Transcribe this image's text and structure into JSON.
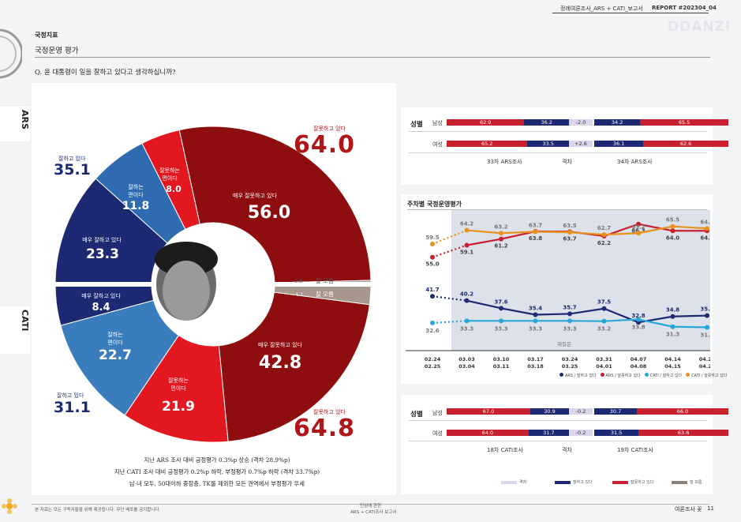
{
  "header": {
    "report_title": "정례여론조사_ARS + CATI_보고서",
    "report_no": "REPORT #202304_04",
    "watermark": "DDANZI"
  },
  "section": {
    "category": "국정지표",
    "title": "국정운영 평가",
    "question": "Q.  윤 대통령이 일을 잘하고 있다고 생각하십니까?"
  },
  "side_labels": {
    "ars": "ARS",
    "cati": "CATI"
  },
  "donut": {
    "ars": {
      "positive_label": "잘하고 있다",
      "positive": "35.1",
      "negative_label": "잘못하고 있다",
      "negative": "64.0",
      "very_neg_label": "매우 잘못하고 있다",
      "very_neg": "56.0",
      "some_neg_label": "잘못하는\n편이다",
      "some_neg": "8.0",
      "some_pos_label": "잘하는\n편이다",
      "some_pos": "11.8",
      "very_pos_label": "매우 잘하고 있다",
      "very_pos": "23.3",
      "dk_label": "잘 모름",
      "dk": "0.8"
    },
    "cati": {
      "positive_label": "잘하고 있다",
      "positive": "31.1",
      "negative_label": "잘못하고 있다",
      "negative": "64.8",
      "very_neg_label": "매우 잘못하고 있다",
      "very_neg": "42.8",
      "some_neg_label": "잘못하는\n편이다",
      "some_neg": "21.9",
      "some_pos_label": "잘하는\n편이다",
      "some_pos": "22.7",
      "very_pos_label": "매우 잘하고 있다",
      "very_pos": "8.4",
      "dk_label": "잘 모름",
      "dk": "4.1"
    }
  },
  "notes": [
    "지난 ARS 조사 대비 긍정평가 0.3%p 상승 (격차 28.9%p)",
    "지난 CATI 조사 대비 긍정평가 0.2%p 하락, 부정평가 0.7%p 하락 (격차 33.7%p)",
    "남·녀 모두, 50대이하 중장층, TK를 제외한 모든 권역에서 부정평가 우세"
  ],
  "gender_top": {
    "group_label": "성별",
    "rows": [
      {
        "label": "남성",
        "a_neg": "62.9",
        "a_pos": "36.2",
        "gap": "-2.0",
        "b_pos": "34.2",
        "b_neg": "65.5"
      },
      {
        "label": "여성",
        "a_neg": "65.2",
        "a_pos": "33.5",
        "gap": "+2.6",
        "b_pos": "36.1",
        "b_neg": "62.6"
      }
    ],
    "col_a": "33차 ARS조사",
    "col_gap": "격차",
    "col_b": "34차 ARS조사"
  },
  "weekly": {
    "title": "주차별 국정운영평가",
    "annotation": "재질문",
    "legend": [
      "ARS / 잘하고 있다",
      "ARS / 잘못하고 있다",
      "CATI / 잘하고 있다",
      "CATI / 잘못하고 있다"
    ]
  },
  "chart_data": {
    "type": "line",
    "title": "주차별 국정운영평가",
    "x": [
      "02.24\n02.25",
      "03.03\n03.04",
      "03.10\n03.11",
      "03.17\n03.18",
      "03.24\n03.25",
      "03.31\n04.01",
      "04.07\n04.08",
      "04.14\n04.15",
      "04.21\n04.22"
    ],
    "series": [
      {
        "name": "ARS / 잘못하고 있다",
        "values": [
          55.0,
          59.1,
          61.2,
          63.8,
          63.7,
          62.2,
          66.3,
          64.0,
          64.0
        ]
      },
      {
        "name": "CATI / 잘못하고 있다",
        "values": [
          59.5,
          64.2,
          63.2,
          63.7,
          63.5,
          62.7,
          63.2,
          65.5,
          64.8
        ]
      },
      {
        "name": "ARS / 잘하고 있다",
        "values": [
          41.7,
          40.2,
          37.6,
          35.4,
          35.7,
          37.5,
          32.8,
          34.8,
          35.1
        ]
      },
      {
        "name": "CATI / 잘하고 있다",
        "values": [
          32.6,
          33.3,
          33.3,
          33.3,
          33.3,
          33.2,
          33.8,
          31.3,
          31.1
        ]
      }
    ],
    "colors": [
      "#c8202f",
      "#e8911c",
      "#1d2a73",
      "#27a7d8"
    ]
  },
  "gender_bottom": {
    "group_label": "성별",
    "rows": [
      {
        "label": "남성",
        "a_neg": "67.0",
        "a_pos": "30.9",
        "gap": "-0.2",
        "b_pos": "30.7",
        "b_neg": "66.0"
      },
      {
        "label": "여성",
        "a_neg": "64.0",
        "a_pos": "31.7",
        "gap": "-0.2",
        "b_pos": "31.5",
        "b_neg": "63.6"
      }
    ],
    "col_a": "18차 CATI조사",
    "col_gap": "격차",
    "col_b": "19차 CATI조사"
  },
  "bottom_legend": [
    "격차",
    "잘하고 있다",
    "잘못하고 있다",
    "잘 모름"
  ],
  "footer": {
    "left": "본 자료는 모든 구독자들을 위해 제공됩니다. 무단 배포를 금지합니다.",
    "center_1": "민심에 관한",
    "center_2": "ARS + CATI조사 보고서",
    "right": "여론조사 꽃",
    "page": "11"
  },
  "colors": {
    "dark_red": "#8e0e10",
    "red": "#e3171f",
    "navy": "#1d2a73",
    "blue": "#2f6bb1",
    "mid_blue": "#3a7dbd",
    "grey": "#a8978c",
    "chart_bg": "#dde2ea"
  }
}
